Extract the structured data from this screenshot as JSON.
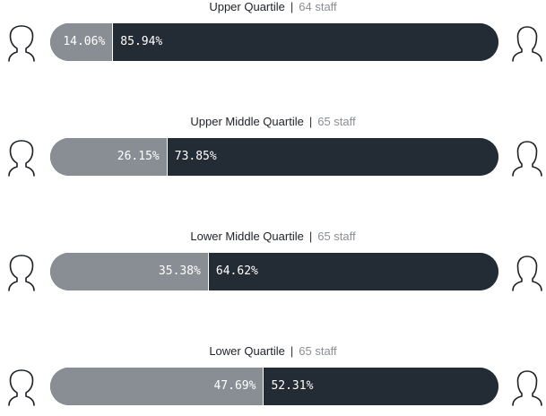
{
  "chart_data": {
    "type": "bar",
    "orientation": "horizontal",
    "stacked": true,
    "categories": [
      "Upper Quartile",
      "Upper Middle Quartile",
      "Lower Middle Quartile",
      "Lower Quartile"
    ],
    "staff_counts": [
      "64 staff",
      "65 staff",
      "65 staff",
      "65 staff"
    ],
    "series": [
      {
        "values": [
          14.06,
          26.15,
          35.38,
          47.69
        ],
        "labels": [
          "14.06%",
          "26.15%",
          "35.38%",
          "47.69%"
        ],
        "color": "#898e94"
      },
      {
        "values": [
          85.94,
          73.85,
          64.62,
          52.31
        ],
        "labels": [
          "85.94%",
          "73.85%",
          "64.62%",
          "52.31%"
        ],
        "color": "#232b35"
      }
    ],
    "xlim": [
      0,
      100
    ],
    "grid": false
  },
  "icons": {
    "left": "female-person-outline-icon",
    "right": "male-person-outline-icon"
  }
}
